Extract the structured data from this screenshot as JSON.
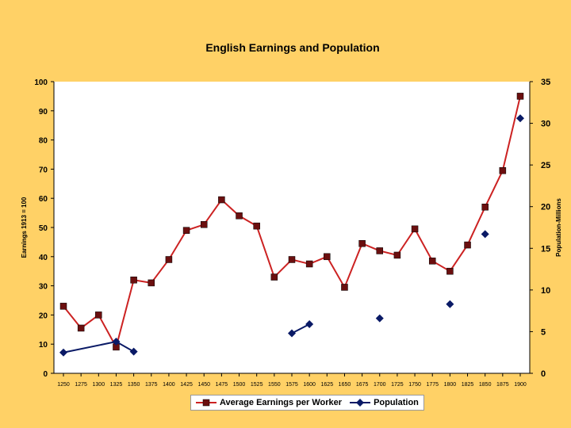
{
  "chart_data": {
    "type": "line",
    "title": "English Earnings and Population",
    "y_left_label": "Earnings 1913 = 100",
    "y_right_label": "Population-Millions",
    "y_left_range": [
      0,
      100
    ],
    "y_right_range": [
      0,
      35
    ],
    "y_left_ticks": [
      "0",
      "10",
      "20",
      "30",
      "40",
      "50",
      "60",
      "70",
      "80",
      "90",
      "100"
    ],
    "y_right_ticks": [
      "0",
      "5",
      "10",
      "15",
      "20",
      "25",
      "30",
      "35"
    ],
    "x_categories": [
      "1250",
      "1275",
      "1300",
      "1325",
      "1350",
      "1375",
      "1400",
      "1425",
      "1450",
      "1475",
      "1500",
      "1525",
      "1550",
      "1575",
      "1600",
      "1625",
      "1650",
      "1675",
      "1700",
      "1725",
      "1750",
      "1775",
      "1800",
      "1825",
      "1850",
      "1875",
      "1900"
    ],
    "series": [
      {
        "name": "Average Earnings per Worker",
        "axis": "left",
        "color": "#cc2222",
        "marker": "square",
        "values": [
          23,
          15.5,
          20,
          9,
          32,
          31,
          39,
          49,
          51,
          59.5,
          54,
          50.5,
          33,
          39,
          37.5,
          40,
          29.5,
          44.5,
          42,
          40.5,
          49.5,
          38.5,
          35,
          44,
          57,
          69.5,
          95
        ]
      },
      {
        "name": "Population",
        "axis": "right",
        "color": "#0a1a66",
        "marker": "diamond",
        "segments": [
          [
            [
              0,
              2.5
            ],
            [
              3,
              3.8
            ],
            [
              4,
              2.6
            ]
          ],
          [
            [
              13,
              4.8
            ],
            [
              14,
              5.9
            ]
          ],
          [
            [
              18,
              6.6
            ]
          ],
          [
            [
              22,
              8.3
            ]
          ],
          [
            [
              24,
              16.7
            ]
          ],
          [
            [
              26,
              30.6
            ]
          ]
        ]
      }
    ],
    "grid": false,
    "legend_position": "bottom"
  }
}
